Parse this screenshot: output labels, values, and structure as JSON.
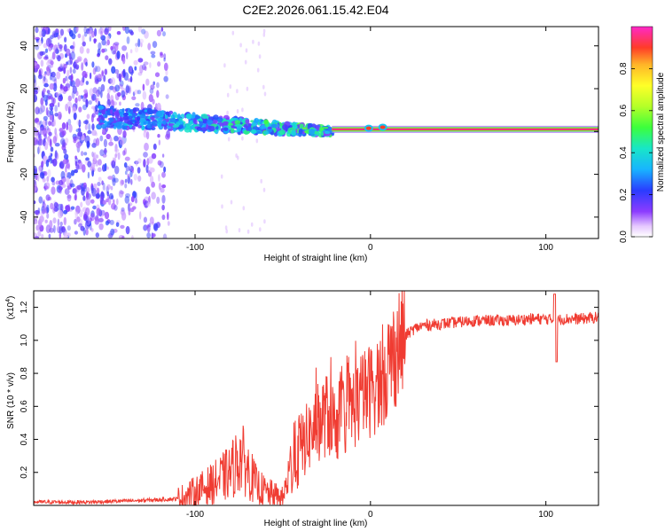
{
  "figure_title": "C2E2.2026.061.15.42.E04",
  "chart_data": [
    {
      "type": "heatmap",
      "name": "spectrogram",
      "xlabel": "Height of straight line (km)",
      "ylabel": "Frequency (Hz)",
      "xlim": [
        -192,
        130
      ],
      "ylim": [
        -50,
        49
      ],
      "x_ticks": [
        -100,
        0,
        100
      ],
      "x_tick_labels": [
        "-100",
        "0",
        "100"
      ],
      "y_ticks": [
        -40,
        -20,
        0,
        20,
        40
      ],
      "y_tick_labels": [
        "-40",
        "-20",
        "0",
        "20",
        "40"
      ],
      "colorbar": {
        "label": "Normalized spectral amplitude",
        "range": [
          0.0,
          1.0
        ],
        "ticks": [
          0.0,
          0.2,
          0.4,
          0.6,
          0.8
        ],
        "tick_labels": [
          "0.0",
          "0.2",
          "0.4",
          "0.6",
          "0.8"
        ]
      },
      "features": {
        "steady_tone": {
          "x_range": [
            -22,
            130
          ],
          "freq": 1,
          "amplitude": 0.95
        },
        "bright_band": {
          "x_range": [
            -155,
            -22
          ],
          "freq_start": 7,
          "freq_end": 0,
          "amplitude": 0.35
        },
        "noise_region": {
          "x_range": [
            -192,
            -115
          ],
          "freq_range": [
            -50,
            49
          ],
          "amplitude": 0.15
        }
      }
    },
    {
      "type": "line",
      "name": "snr",
      "xlabel": "Height of straight line (km)",
      "ylabel": "SNR (10 * v/v)",
      "scale_label": "(x10",
      "scale_exponent": "4",
      "xlim": [
        -192,
        130
      ],
      "ylim": [
        0,
        1.3
      ],
      "x_ticks": [
        -100,
        0,
        100
      ],
      "x_tick_labels": [
        "-100",
        "0",
        "100"
      ],
      "y_ticks": [
        0.2,
        0.4,
        0.6,
        0.8,
        1.0,
        1.2
      ],
      "y_tick_labels": [
        "0.2",
        "0.4",
        "0.6",
        "0.8",
        "1.0",
        "1.2"
      ],
      "series": [
        {
          "name": "SNR",
          "color": "#f03c32",
          "x": [
            -192,
            -160,
            -130,
            -110,
            -100,
            -90,
            -80,
            -74,
            -70,
            -65,
            -60,
            -55,
            -50,
            -45,
            -40,
            -35,
            -30,
            -25,
            -20,
            -15,
            -10,
            -5,
            0,
            5,
            10,
            15,
            20,
            25,
            30,
            40,
            50,
            60,
            70,
            80,
            90,
            100,
            106,
            110,
            120,
            130
          ],
          "y": [
            0.02,
            0.02,
            0.03,
            0.04,
            0.08,
            0.13,
            0.2,
            0.3,
            0.22,
            0.12,
            0.08,
            0.06,
            0.04,
            0.25,
            0.35,
            0.42,
            0.5,
            0.55,
            0.5,
            0.55,
            0.6,
            0.65,
            0.7,
            0.75,
            0.85,
            0.95,
            1.03,
            1.07,
            1.09,
            1.1,
            1.11,
            1.12,
            1.12,
            1.12,
            1.13,
            1.13,
            1.12,
            1.13,
            1.13,
            1.14
          ]
        }
      ]
    }
  ]
}
